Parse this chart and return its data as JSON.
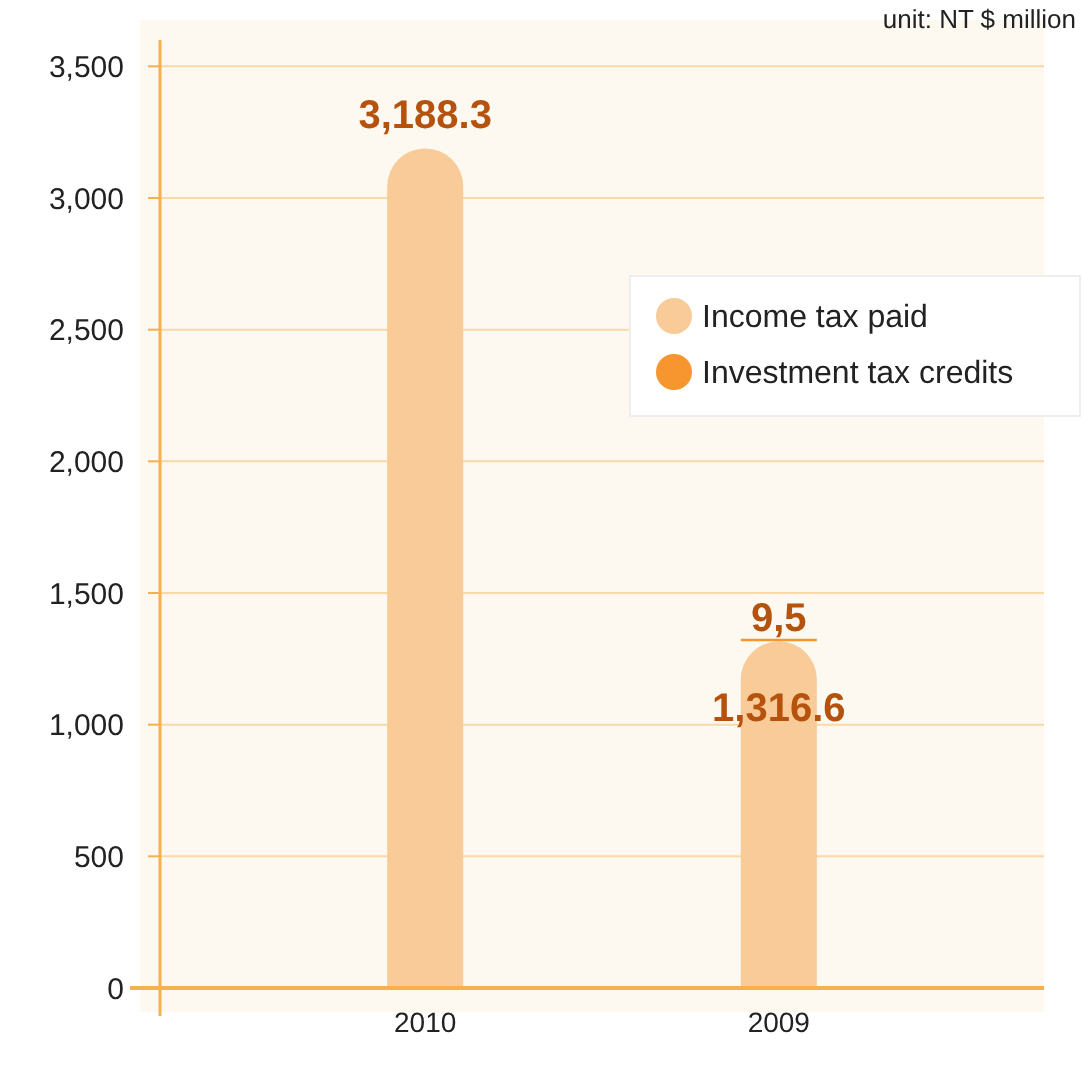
{
  "chart_data": {
    "type": "bar",
    "stacked": true,
    "categories": [
      "2010",
      "2009"
    ],
    "series": [
      {
        "name": "Income tax paid",
        "color": "#f9cb98",
        "values": [
          3188.3,
          1316.6
        ],
        "value_labels": [
          "3,188.3",
          "1,316.6"
        ]
      },
      {
        "name": "Investment tax credits",
        "color": "#f7962f",
        "values": [
          null,
          9.5
        ],
        "value_labels": [
          null,
          "9,5"
        ]
      }
    ],
    "ylim": [
      0,
      3600
    ],
    "yticks": [
      {
        "value": 0,
        "label": "0"
      },
      {
        "value": 500,
        "label": "500"
      },
      {
        "value": 1000,
        "label": "1,000"
      },
      {
        "value": 1500,
        "label": "1,500"
      },
      {
        "value": 2000,
        "label": "2,000"
      },
      {
        "value": 2500,
        "label": "2,500"
      },
      {
        "value": 3000,
        "label": "3,000"
      },
      {
        "value": 3500,
        "label": "3,500"
      }
    ],
    "grid": "y",
    "legend": "top right",
    "annotations": [
      "unit: NT $ million"
    ]
  }
}
